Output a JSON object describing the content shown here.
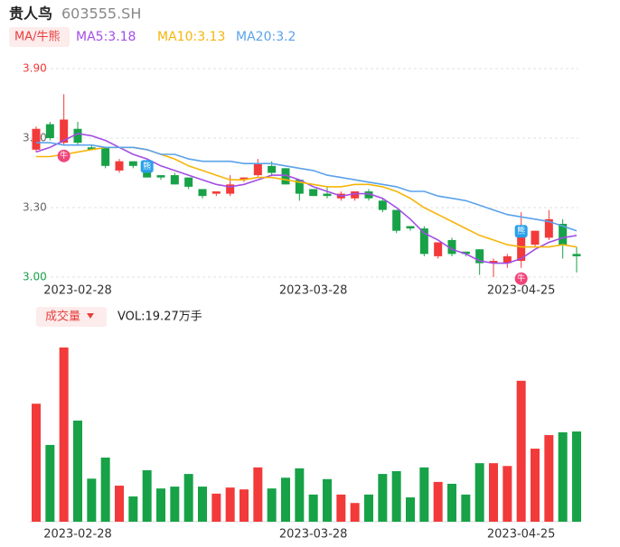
{
  "header": {
    "name": "贵人鸟",
    "code": "603555.SH"
  },
  "chart_data": [
    {
      "type": "candlestick",
      "legend_title": "MA/牛熊",
      "categories": [
        null,
        null,
        null,
        "2023-02-28",
        null,
        null,
        null,
        null,
        null,
        null,
        null,
        null,
        null,
        null,
        null,
        null,
        null,
        null,
        null,
        null,
        "2023-03-28",
        null,
        null,
        null,
        null,
        null,
        null,
        null,
        null,
        null,
        null,
        null,
        null,
        null,
        null,
        "2023-04-25",
        null,
        null,
        null,
        null
      ],
      "open": [
        3.55,
        3.66,
        3.58,
        3.64,
        3.56,
        3.56,
        3.46,
        3.5,
        3.47,
        3.44,
        3.44,
        3.43,
        3.38,
        3.36,
        3.36,
        3.42,
        3.44,
        3.48,
        3.47,
        3.42,
        3.38,
        3.36,
        3.34,
        3.34,
        3.37,
        3.33,
        3.29,
        3.22,
        3.21,
        3.09,
        3.16,
        3.11,
        3.12,
        3.06,
        3.06,
        3.07,
        3.14,
        3.17,
        3.23,
        3.1
      ],
      "high": [
        3.65,
        3.67,
        3.79,
        3.67,
        3.57,
        3.56,
        3.51,
        3.5,
        3.47,
        3.44,
        3.45,
        3.43,
        3.38,
        3.37,
        3.44,
        3.43,
        3.51,
        3.5,
        3.47,
        3.42,
        3.38,
        3.39,
        3.37,
        3.37,
        3.38,
        3.34,
        3.29,
        3.22,
        3.22,
        3.15,
        3.17,
        3.11,
        3.12,
        3.08,
        3.1,
        3.28,
        3.2,
        3.29,
        3.25,
        3.13
      ],
      "low": [
        3.54,
        3.59,
        3.57,
        3.57,
        3.55,
        3.47,
        3.45,
        3.47,
        3.43,
        3.42,
        3.4,
        3.38,
        3.34,
        3.35,
        3.35,
        3.41,
        3.43,
        3.44,
        3.4,
        3.33,
        3.35,
        3.34,
        3.33,
        3.33,
        3.33,
        3.28,
        3.19,
        3.2,
        3.09,
        3.08,
        3.09,
        3.09,
        3.01,
        3.0,
        3.04,
        3.04,
        3.13,
        3.16,
        3.08,
        3.02
      ],
      "close": [
        3.64,
        3.6,
        3.68,
        3.58,
        3.55,
        3.48,
        3.5,
        3.48,
        3.43,
        3.43,
        3.4,
        3.39,
        3.35,
        3.37,
        3.4,
        3.43,
        3.49,
        3.45,
        3.4,
        3.36,
        3.35,
        3.35,
        3.36,
        3.37,
        3.34,
        3.29,
        3.2,
        3.21,
        3.1,
        3.15,
        3.1,
        3.1,
        3.06,
        3.07,
        3.09,
        3.19,
        3.2,
        3.25,
        3.14,
        3.09
      ],
      "up_color": "#f23a3a",
      "down_color": "#17a247",
      "series": [
        {
          "name": "MA5:3.18",
          "color": "#a34de6",
          "values": [
            3.54,
            3.56,
            3.59,
            3.62,
            3.61,
            3.59,
            3.56,
            3.53,
            3.51,
            3.48,
            3.46,
            3.44,
            3.42,
            3.4,
            3.39,
            3.4,
            3.42,
            3.44,
            3.44,
            3.42,
            3.39,
            3.37,
            3.35,
            3.36,
            3.36,
            3.34,
            3.3,
            3.25,
            3.19,
            3.16,
            3.12,
            3.1,
            3.07,
            3.06,
            3.06,
            3.08,
            3.12,
            3.15,
            3.17,
            3.18
          ]
        },
        {
          "name": "MA10:3.13",
          "color": "#f5b50a",
          "values": [
            3.52,
            3.52,
            3.53,
            3.54,
            3.55,
            3.56,
            3.56,
            3.56,
            3.55,
            3.53,
            3.51,
            3.48,
            3.46,
            3.44,
            3.42,
            3.42,
            3.43,
            3.43,
            3.42,
            3.41,
            3.4,
            3.39,
            3.39,
            3.4,
            3.4,
            3.39,
            3.37,
            3.34,
            3.3,
            3.27,
            3.24,
            3.21,
            3.18,
            3.16,
            3.14,
            3.13,
            3.13,
            3.13,
            3.14,
            3.13
          ]
        },
        {
          "name": "MA20:3.2",
          "color": "#5aa2ea",
          "values": [
            3.58,
            3.58,
            3.57,
            3.57,
            3.57,
            3.56,
            3.56,
            3.56,
            3.55,
            3.53,
            3.53,
            3.51,
            3.5,
            3.5,
            3.5,
            3.49,
            3.49,
            3.49,
            3.48,
            3.47,
            3.46,
            3.44,
            3.43,
            3.42,
            3.41,
            3.4,
            3.39,
            3.37,
            3.37,
            3.35,
            3.34,
            3.33,
            3.31,
            3.29,
            3.27,
            3.26,
            3.25,
            3.24,
            3.22,
            3.2
          ]
        }
      ],
      "bull_signals": [
        null,
        null,
        "牛",
        null,
        null,
        null,
        null,
        null,
        null,
        null,
        null,
        null,
        null,
        null,
        null,
        null,
        null,
        null,
        null,
        null,
        null,
        null,
        null,
        null,
        null,
        null,
        null,
        null,
        null,
        null,
        null,
        null,
        null,
        null,
        null,
        "牛",
        null,
        null,
        null,
        null
      ],
      "bear_signals": [
        null,
        null,
        null,
        null,
        null,
        null,
        null,
        null,
        "熊",
        null,
        null,
        null,
        null,
        null,
        null,
        null,
        null,
        null,
        null,
        null,
        null,
        null,
        null,
        null,
        null,
        null,
        null,
        null,
        null,
        null,
        null,
        null,
        null,
        null,
        null,
        "熊",
        null,
        null,
        null,
        null
      ],
      "ylim": [
        3.0,
        3.9
      ],
      "yticks": [
        {
          "value": 3.0,
          "label": "3.00"
        },
        {
          "value": 3.3,
          "label": "3.30"
        },
        {
          "value": 3.6,
          "label": "3.60"
        },
        {
          "value": 3.9,
          "label": "3.90"
        }
      ],
      "grid": true
    },
    {
      "type": "bar",
      "title": "成交量",
      "label": "VOL:19.27万手",
      "values": [
        25.2,
        16.4,
        37.2,
        21.6,
        9.2,
        13.7,
        7.7,
        5.4,
        11.0,
        7.1,
        7.5,
        10.2,
        7.5,
        6.0,
        7.3,
        6.9,
        11.6,
        7.1,
        9.4,
        11.4,
        5.8,
        9.1,
        5.8,
        4.0,
        5.8,
        10.2,
        10.8,
        5.2,
        11.6,
        8.5,
        8.1,
        5.8,
        12.5,
        12.5,
        11.9,
        30.1,
        15.6,
        18.5,
        19.1,
        19.27
      ]
    }
  ]
}
